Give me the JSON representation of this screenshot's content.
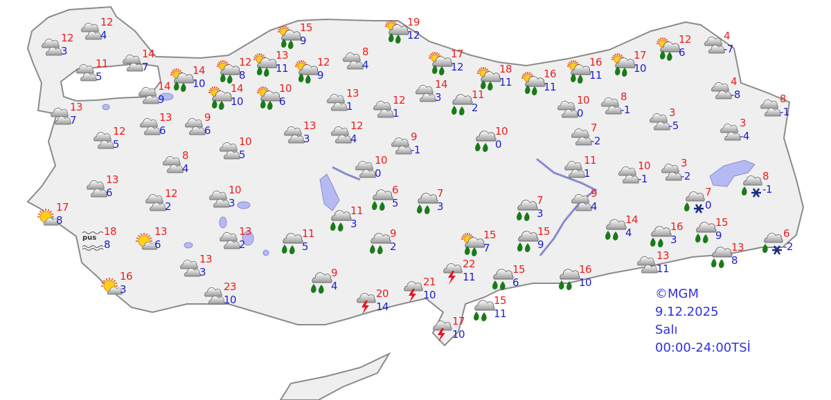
{
  "credit": {
    "source": "©MGM",
    "date": "9.12.2025",
    "day": "Salı",
    "period": "00:00-24:00TSİ"
  },
  "colors": {
    "max_temp": "#ee1c1c",
    "min_temp": "#1c1ccc",
    "land": "#efefef",
    "water": "#b6baf2",
    "raindrop": "#1a7a1a"
  },
  "fog_label": "pus",
  "stations": [
    {
      "icon": "cloudy",
      "max": "12",
      "min": "4"
    },
    {
      "icon": "cloudy",
      "max": "12",
      "min": "3"
    },
    {
      "icon": "cloudy",
      "max": "11",
      "min": "5"
    },
    {
      "icon": "cloudy",
      "max": "14",
      "min": "7"
    },
    {
      "icon": "sun-rain",
      "max": "14",
      "min": "10"
    },
    {
      "icon": "cloudy",
      "max": "14",
      "min": "9"
    },
    {
      "icon": "cloudy",
      "max": "13",
      "min": "7"
    },
    {
      "icon": "cloudy",
      "max": "12",
      "min": "5"
    },
    {
      "icon": "cloudy",
      "max": "13",
      "min": "6"
    },
    {
      "icon": "cloudy",
      "max": "9",
      "min": "6"
    },
    {
      "icon": "cloudy",
      "max": "8",
      "min": "4"
    },
    {
      "icon": "cloudy",
      "max": "10",
      "min": "5"
    },
    {
      "icon": "cloudy",
      "max": "13",
      "min": "6"
    },
    {
      "icon": "cloudy",
      "max": "12",
      "min": "2"
    },
    {
      "icon": "cloudy",
      "max": "10",
      "min": "3"
    },
    {
      "icon": "sun",
      "max": "17",
      "min": "8"
    },
    {
      "icon": "fog",
      "max": "18",
      "min": "8"
    },
    {
      "icon": "sun",
      "max": "13",
      "min": "6"
    },
    {
      "icon": "cloudy",
      "max": "13",
      "min": "3"
    },
    {
      "icon": "sun",
      "max": "16",
      "min": "3"
    },
    {
      "icon": "cloudy",
      "max": "13",
      "min": "2"
    },
    {
      "icon": "cloudy",
      "max": "23",
      "min": "10"
    },
    {
      "icon": "sun-rain",
      "max": "12",
      "min": "8"
    },
    {
      "icon": "sun-rain",
      "max": "14",
      "min": "10"
    },
    {
      "icon": "sun-rain",
      "max": "10",
      "min": "6"
    },
    {
      "icon": "sun-rain",
      "max": "13",
      "min": "11"
    },
    {
      "icon": "sun-rain",
      "max": "15",
      "min": "9"
    },
    {
      "icon": "sun-rain",
      "max": "12",
      "min": "9"
    },
    {
      "icon": "cloudy",
      "max": "8",
      "min": "4"
    },
    {
      "icon": "cloudy",
      "max": "13",
      "min": "1"
    },
    {
      "icon": "cloudy",
      "max": "13",
      "min": "3"
    },
    {
      "icon": "cloudy",
      "max": "12",
      "min": "4"
    },
    {
      "icon": "cloudy",
      "max": "12",
      "min": "1"
    },
    {
      "icon": "cloudy",
      "max": "9",
      "min": "-1"
    },
    {
      "icon": "cloudy",
      "max": "10",
      "min": "0"
    },
    {
      "icon": "sun-rain",
      "max": "19",
      "min": "12"
    },
    {
      "icon": "cloudy",
      "max": "14",
      "min": "3"
    },
    {
      "icon": "sun-rain",
      "max": "17",
      "min": "12"
    },
    {
      "icon": "rain",
      "max": "11",
      "min": "2"
    },
    {
      "icon": "rain",
      "max": "10",
      "min": "0"
    },
    {
      "icon": "sun-rain",
      "max": "18",
      "min": "11"
    },
    {
      "icon": "sun-rain",
      "max": "16",
      "min": "11"
    },
    {
      "icon": "sun-rain",
      "max": "16",
      "min": "11"
    },
    {
      "icon": "sun-rain",
      "max": "17",
      "min": "10"
    },
    {
      "icon": "sun-rain",
      "max": "12",
      "min": "6"
    },
    {
      "icon": "cloudy",
      "max": "4",
      "min": "-7"
    },
    {
      "icon": "cloudy",
      "max": "10",
      "min": "0"
    },
    {
      "icon": "cloudy",
      "max": "8",
      "min": "-1"
    },
    {
      "icon": "cloudy",
      "max": "3",
      "min": "-5"
    },
    {
      "icon": "cloudy",
      "max": "4",
      "min": "-8"
    },
    {
      "icon": "cloudy",
      "max": "8",
      "min": "-1"
    },
    {
      "icon": "cloudy",
      "max": "7",
      "min": "-2"
    },
    {
      "icon": "cloudy",
      "max": "3",
      "min": "-4"
    },
    {
      "icon": "cloudy",
      "max": "11",
      "min": "1"
    },
    {
      "icon": "cloudy",
      "max": "10",
      "min": "-1"
    },
    {
      "icon": "cloudy",
      "max": "3",
      "min": "-2"
    },
    {
      "icon": "rain-snow",
      "max": "8",
      "min": "-1"
    },
    {
      "icon": "rain-snow",
      "max": "7",
      "min": "0"
    },
    {
      "icon": "cloudy",
      "max": "9",
      "min": "4"
    },
    {
      "icon": "rain",
      "max": "7",
      "min": "3"
    },
    {
      "icon": "rain",
      "max": "7",
      "min": "3"
    },
    {
      "icon": "rain",
      "max": "6",
      "min": "5"
    },
    {
      "icon": "rain",
      "max": "11",
      "min": "3"
    },
    {
      "icon": "rain",
      "max": "11",
      "min": "5"
    },
    {
      "icon": "rain",
      "max": "9",
      "min": "2"
    },
    {
      "icon": "sun-rain",
      "max": "15",
      "min": "7"
    },
    {
      "icon": "rain",
      "max": "15",
      "min": "9"
    },
    {
      "icon": "rain",
      "max": "14",
      "min": "4"
    },
    {
      "icon": "rain",
      "max": "16",
      "min": "3"
    },
    {
      "icon": "rain",
      "max": "15",
      "min": "9"
    },
    {
      "icon": "rain-snow",
      "max": "6",
      "min": "-2"
    },
    {
      "icon": "rain",
      "max": "13",
      "min": "8"
    },
    {
      "icon": "cloudy",
      "max": "13",
      "min": "11"
    },
    {
      "icon": "thunder",
      "max": "22",
      "min": "11"
    },
    {
      "icon": "rain",
      "max": "15",
      "min": "6"
    },
    {
      "icon": "rain",
      "max": "16",
      "min": "10"
    },
    {
      "icon": "rain",
      "max": "9",
      "min": "4"
    },
    {
      "icon": "thunder",
      "max": "20",
      "min": "14"
    },
    {
      "icon": "thunder",
      "max": "21",
      "min": "10"
    },
    {
      "icon": "rain",
      "max": "15",
      "min": "11"
    },
    {
      "icon": "thunder",
      "max": "17",
      "min": "10"
    }
  ]
}
